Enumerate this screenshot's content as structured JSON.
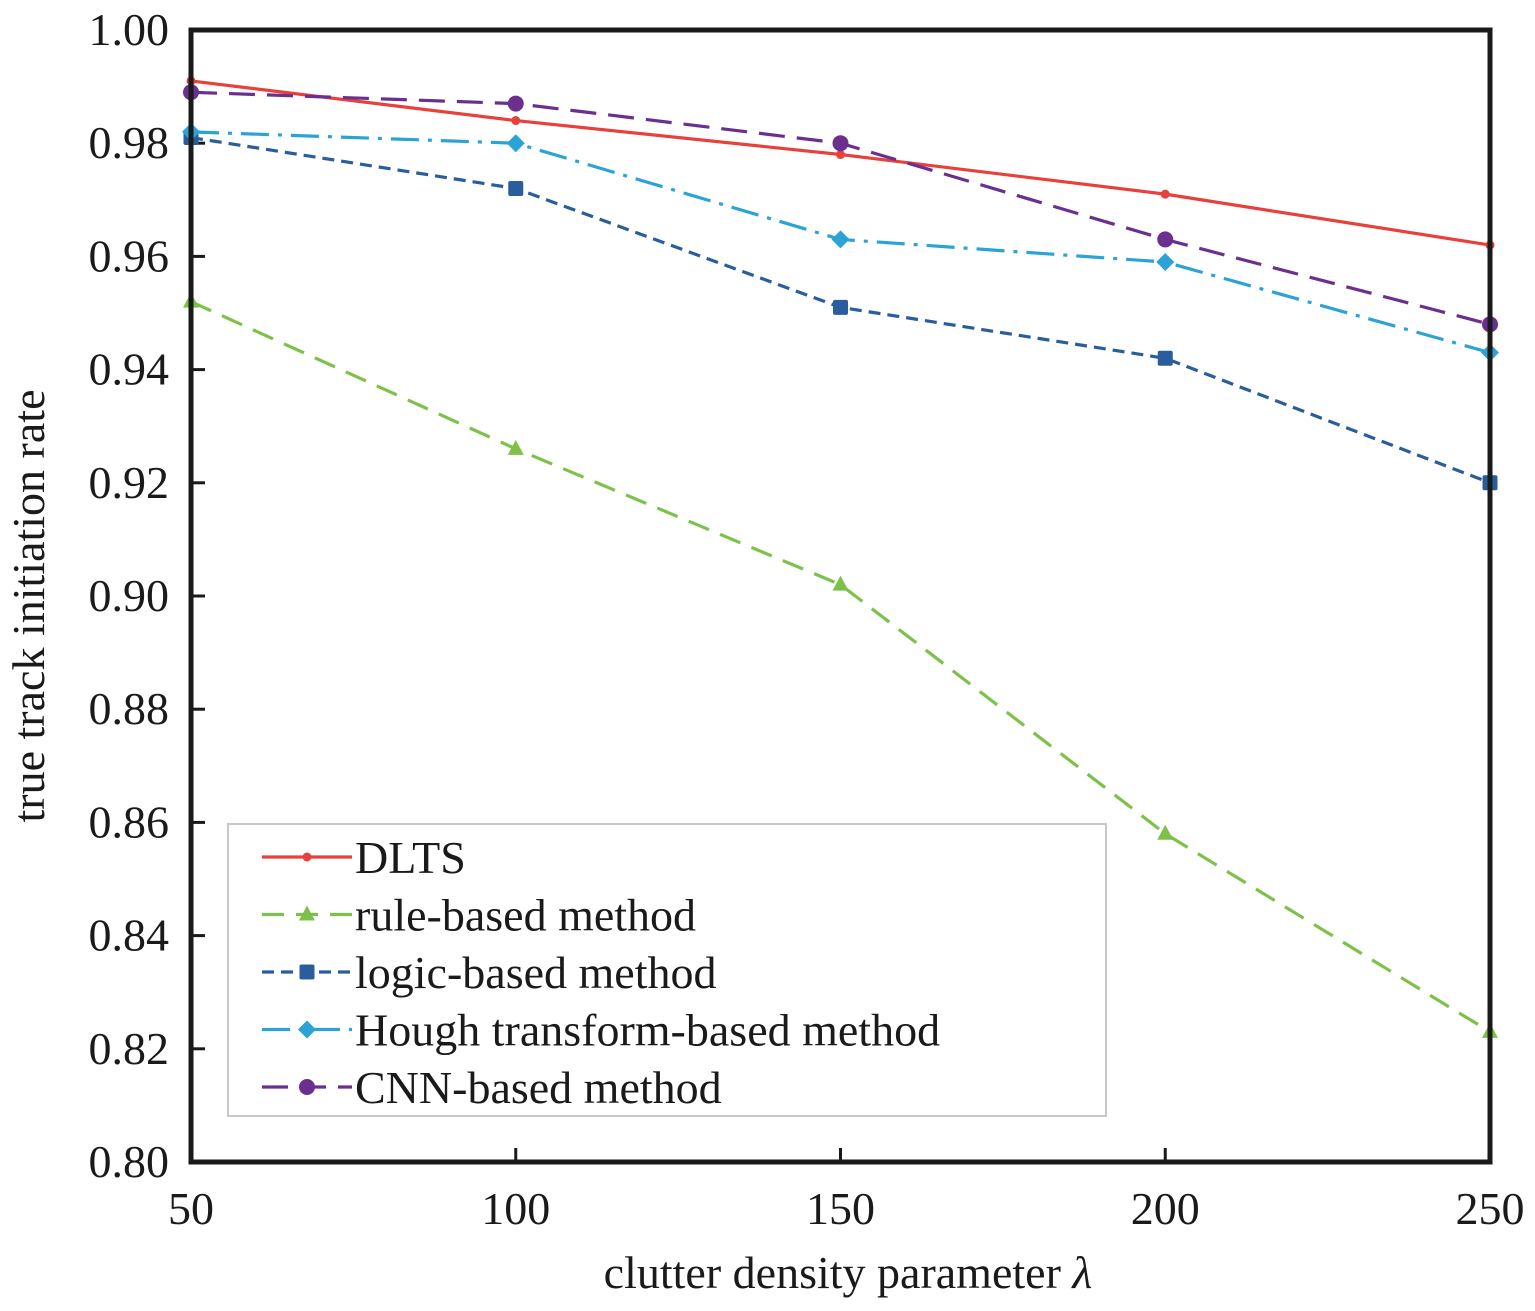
{
  "chart_data": {
    "type": "line",
    "xlabel": "clutter density parameter",
    "xlabel_symbol": "λ",
    "ylabel": "true track initiation rate",
    "xlim": [
      50,
      250
    ],
    "ylim": [
      0.8,
      1.0
    ],
    "x_ticks": [
      "50",
      "100",
      "150",
      "200",
      "250"
    ],
    "y_ticks": [
      "0.80",
      "0.82",
      "0.84",
      "0.86",
      "0.88",
      "0.90",
      "0.92",
      "0.94",
      "0.96",
      "0.98",
      "1.00"
    ],
    "grid": false,
    "legend_position": "bottom-left",
    "x": [
      50,
      100,
      150,
      200,
      250
    ],
    "series": [
      {
        "name": "DLTS",
        "values": [
          0.991,
          0.984,
          0.978,
          0.971,
          0.962
        ],
        "color": "#e8403a",
        "marker": "dot",
        "dash": ""
      },
      {
        "name": "rule-based method",
        "values": [
          0.952,
          0.926,
          0.902,
          0.858,
          0.823
        ],
        "color": "#7ec14a",
        "marker": "triangle",
        "dash": "22,12"
      },
      {
        "name": "logic-based method",
        "values": [
          0.981,
          0.972,
          0.951,
          0.942,
          0.92
        ],
        "color": "#2a5d9c",
        "marker": "square",
        "dash": "12,7"
      },
      {
        "name": "Hough transform-based method",
        "values": [
          0.982,
          0.98,
          0.963,
          0.959,
          0.943
        ],
        "color": "#2ba3d6",
        "marker": "diamond",
        "dash": "28,9,4,9"
      },
      {
        "name": "CNN-based method",
        "values": [
          0.989,
          0.987,
          0.98,
          0.963,
          0.948
        ],
        "color": "#6b2f8f",
        "marker": "circle",
        "dash": "26,12"
      }
    ]
  }
}
